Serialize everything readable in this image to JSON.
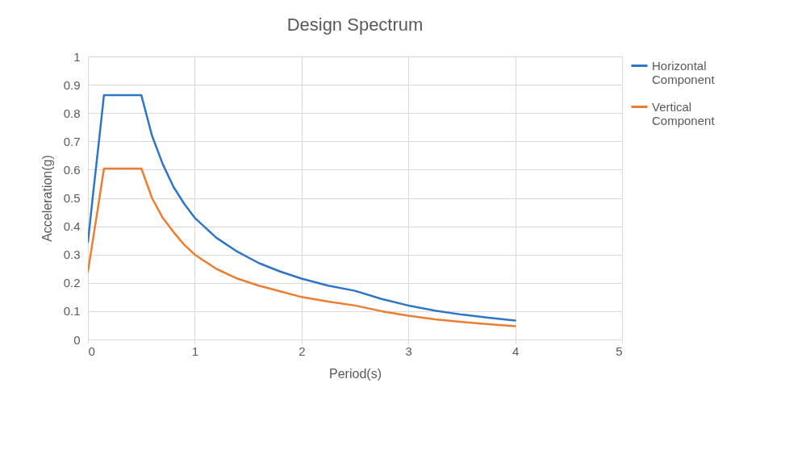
{
  "chart_data": {
    "type": "line",
    "title": "Design Spectrum",
    "xlabel": "Period(s)",
    "ylabel": "Acceleration(g)",
    "x": [
      0,
      0.05,
      0.1,
      0.15,
      0.5,
      0.6,
      0.7,
      0.8,
      0.9,
      1,
      1.2,
      1.4,
      1.6,
      1.8,
      2,
      2.25,
      2.5,
      2.75,
      3,
      3.25,
      3.5,
      3.75,
      4
    ],
    "series": [
      {
        "name": "Horizontal Component",
        "color": "#2e75c6",
        "values": [
          0.345,
          0.52,
          0.69,
          0.863,
          0.863,
          0.72,
          0.62,
          0.54,
          0.48,
          0.43,
          0.36,
          0.31,
          0.27,
          0.24,
          0.215,
          0.19,
          0.172,
          0.143,
          0.12,
          0.102,
          0.088,
          0.077,
          0.067
        ]
      },
      {
        "name": "Vertical Component",
        "color": "#ed7d31",
        "values": [
          0.24,
          0.36,
          0.48,
          0.604,
          0.604,
          0.5,
          0.43,
          0.38,
          0.335,
          0.3,
          0.25,
          0.215,
          0.19,
          0.17,
          0.15,
          0.134,
          0.12,
          0.1,
          0.084,
          0.071,
          0.062,
          0.054,
          0.047
        ]
      }
    ],
    "xlim": [
      0,
      5
    ],
    "xticks": [
      0,
      1,
      2,
      3,
      4,
      5
    ],
    "ylim": [
      0,
      1
    ],
    "yticks": [
      0,
      0.1,
      0.2,
      0.3,
      0.4,
      0.5,
      0.6,
      0.7,
      0.8,
      0.9,
      1
    ],
    "grid": true,
    "legend": "right",
    "marker": "none",
    "line_style": "solid"
  }
}
